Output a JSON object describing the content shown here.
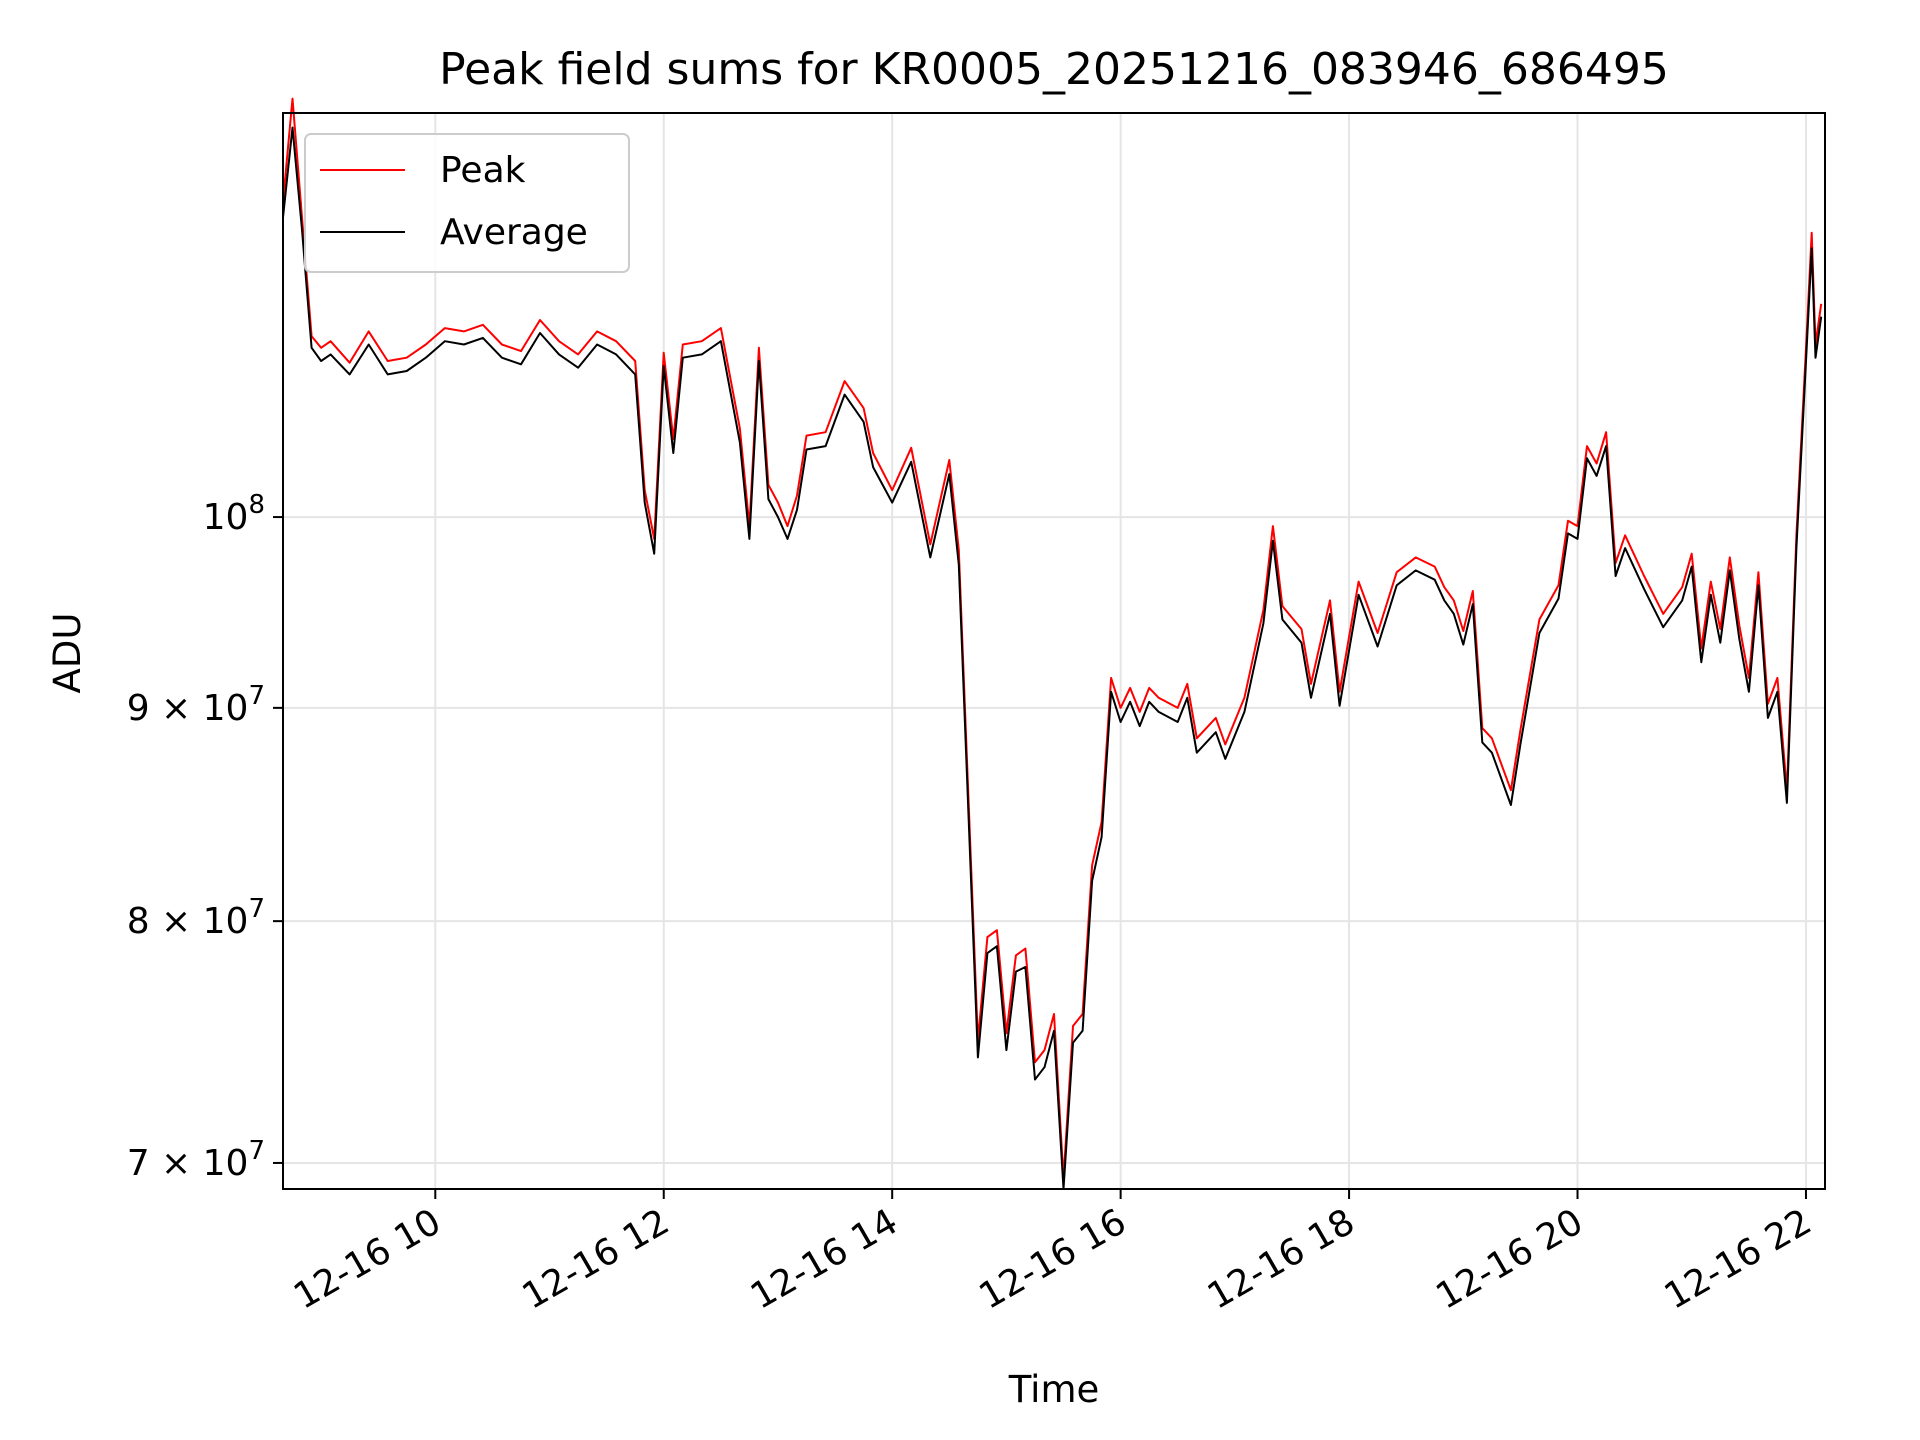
{
  "chart_data": {
    "type": "line",
    "title": "Peak field sums for KR0005_20251216_083946_686495",
    "xlabel": "Time",
    "ylabel": "ADU",
    "yscale": "log",
    "xlim": [
      "2025-12-16 08:40",
      "2025-12-16 22:10"
    ],
    "ylim": [
      69000000,
      125000000
    ],
    "grid": true,
    "legend_position": "top-left",
    "x_ticks": [
      {
        "x": "2025-12-16 10:00",
        "label": "12-16 10"
      },
      {
        "x": "2025-12-16 12:00",
        "label": "12-16 12"
      },
      {
        "x": "2025-12-16 14:00",
        "label": "12-16 14"
      },
      {
        "x": "2025-12-16 16:00",
        "label": "12-16 16"
      },
      {
        "x": "2025-12-16 18:00",
        "label": "12-16 18"
      },
      {
        "x": "2025-12-16 20:00",
        "label": "12-16 20"
      },
      {
        "x": "2025-12-16 22:00",
        "label": "12-16 22"
      }
    ],
    "y_ticks": [
      {
        "y": 70000000,
        "base": "7 × 10",
        "exp": "7"
      },
      {
        "y": 80000000,
        "base": "8 × 10",
        "exp": "7"
      },
      {
        "y": 90000000,
        "base": "9 × 10",
        "exp": "7"
      },
      {
        "y": 100000000,
        "base": "10",
        "exp": "8"
      }
    ],
    "series": [
      {
        "name": "Peak",
        "color": "#ff0000"
      },
      {
        "name": "Average",
        "color": "#000000"
      }
    ],
    "x": [
      "2025-12-16 08:40",
      "2025-12-16 08:45",
      "2025-12-16 08:50",
      "2025-12-16 08:55",
      "2025-12-16 09:00",
      "2025-12-16 09:05",
      "2025-12-16 09:15",
      "2025-12-16 09:25",
      "2025-12-16 09:35",
      "2025-12-16 09:45",
      "2025-12-16 09:55",
      "2025-12-16 10:05",
      "2025-12-16 10:15",
      "2025-12-16 10:25",
      "2025-12-16 10:35",
      "2025-12-16 10:45",
      "2025-12-16 10:55",
      "2025-12-16 11:05",
      "2025-12-16 11:15",
      "2025-12-16 11:25",
      "2025-12-16 11:35",
      "2025-12-16 11:45",
      "2025-12-16 11:50",
      "2025-12-16 11:55",
      "2025-12-16 12:00",
      "2025-12-16 12:05",
      "2025-12-16 12:10",
      "2025-12-16 12:20",
      "2025-12-16 12:30",
      "2025-12-16 12:40",
      "2025-12-16 12:45",
      "2025-12-16 12:50",
      "2025-12-16 12:55",
      "2025-12-16 13:00",
      "2025-12-16 13:05",
      "2025-12-16 13:10",
      "2025-12-16 13:15",
      "2025-12-16 13:25",
      "2025-12-16 13:35",
      "2025-12-16 13:45",
      "2025-12-16 13:50",
      "2025-12-16 14:00",
      "2025-12-16 14:10",
      "2025-12-16 14:20",
      "2025-12-16 14:30",
      "2025-12-16 14:35",
      "2025-12-16 14:45",
      "2025-12-16 14:50",
      "2025-12-16 14:55",
      "2025-12-16 15:00",
      "2025-12-16 15:05",
      "2025-12-16 15:10",
      "2025-12-16 15:15",
      "2025-12-16 15:20",
      "2025-12-16 15:25",
      "2025-12-16 15:30",
      "2025-12-16 15:35",
      "2025-12-16 15:40",
      "2025-12-16 15:45",
      "2025-12-16 15:50",
      "2025-12-16 15:55",
      "2025-12-16 16:00",
      "2025-12-16 16:05",
      "2025-12-16 16:10",
      "2025-12-16 16:15",
      "2025-12-16 16:20",
      "2025-12-16 16:30",
      "2025-12-16 16:35",
      "2025-12-16 16:40",
      "2025-12-16 16:50",
      "2025-12-16 16:55",
      "2025-12-16 17:05",
      "2025-12-16 17:15",
      "2025-12-16 17:20",
      "2025-12-16 17:25",
      "2025-12-16 17:35",
      "2025-12-16 17:40",
      "2025-12-16 17:50",
      "2025-12-16 17:55",
      "2025-12-16 18:05",
      "2025-12-16 18:15",
      "2025-12-16 18:25",
      "2025-12-16 18:35",
      "2025-12-16 18:45",
      "2025-12-16 18:50",
      "2025-12-16 18:55",
      "2025-12-16 19:00",
      "2025-12-16 19:05",
      "2025-12-16 19:10",
      "2025-12-16 19:15",
      "2025-12-16 19:25",
      "2025-12-16 19:30",
      "2025-12-16 19:40",
      "2025-12-16 19:50",
      "2025-12-16 19:55",
      "2025-12-16 20:00",
      "2025-12-16 20:05",
      "2025-12-16 20:10",
      "2025-12-16 20:15",
      "2025-12-16 20:20",
      "2025-12-16 20:25",
      "2025-12-16 20:35",
      "2025-12-16 20:45",
      "2025-12-16 20:55",
      "2025-12-16 21:00",
      "2025-12-16 21:05",
      "2025-12-16 21:10",
      "2025-12-16 21:15",
      "2025-12-16 21:20",
      "2025-12-16 21:25",
      "2025-12-16 21:30",
      "2025-12-16 21:35",
      "2025-12-16 21:40",
      "2025-12-16 21:45",
      "2025-12-16 21:50",
      "2025-12-16 21:55",
      "2025-12-16 22:00",
      "2025-12-16 22:03",
      "2025-12-16 22:05",
      "2025-12-16 22:08"
    ],
    "values_peak": [
      119000000,
      126000000,
      118000000,
      110500000,
      109800000,
      110200000,
      108900000,
      110800000,
      109000000,
      109200000,
      110000000,
      111000000,
      110800000,
      111200000,
      110000000,
      109600000,
      111500000,
      110200000,
      109400000,
      110800000,
      110200000,
      109000000,
      101500000,
      98800000,
      109500000,
      104400000,
      110000000,
      110200000,
      111000000,
      105000000,
      99500000,
      109800000,
      101800000,
      100800000,
      99500000,
      101200000,
      104600000,
      104800000,
      107800000,
      106200000,
      103600000,
      101500000,
      103900000,
      98500000,
      103200000,
      98200000,
      74900000,
      79300000,
      79600000,
      75200000,
      78500000,
      78800000,
      74000000,
      74500000,
      76000000,
      69400000,
      75500000,
      76000000,
      82500000,
      84500000,
      91500000,
      90000000,
      91000000,
      89800000,
      91000000,
      90500000,
      90000000,
      91200000,
      88500000,
      89500000,
      88200000,
      90500000,
      95000000,
      99500000,
      95200000,
      94000000,
      91200000,
      95500000,
      90800000,
      96500000,
      93800000,
      97000000,
      97800000,
      97300000,
      96200000,
      95500000,
      93900000,
      96000000,
      89000000,
      88500000,
      86000000,
      88900000,
      94500000,
      96300000,
      99800000,
      99500000,
      104000000,
      103000000,
      104800000,
      97500000,
      99000000,
      96800000,
      94800000,
      96200000,
      98000000,
      93000000,
      96500000,
      94000000,
      97800000,
      94200000,
      91500000,
      97000000,
      90200000,
      91500000,
      86000000,
      99000000,
      109800000,
      117000000,
      110000000,
      112500000
    ],
    "values_average": [
      118000000,
      124000000,
      117200000,
      109800000,
      109000000,
      109400000,
      108200000,
      110000000,
      108200000,
      108400000,
      109200000,
      110200000,
      110000000,
      110400000,
      109200000,
      108800000,
      110700000,
      109400000,
      108600000,
      110000000,
      109400000,
      108200000,
      100800000,
      98000000,
      108700000,
      103600000,
      109200000,
      109400000,
      110200000,
      104200000,
      98800000,
      109000000,
      101000000,
      100000000,
      98800000,
      100400000,
      103800000,
      104000000,
      107000000,
      105400000,
      102800000,
      100800000,
      103100000,
      97800000,
      102400000,
      97400000,
      74200000,
      78600000,
      78900000,
      74500000,
      77800000,
      78000000,
      73300000,
      73800000,
      75300000,
      69000000,
      74800000,
      75300000,
      81800000,
      83800000,
      90800000,
      89300000,
      90300000,
      89100000,
      90300000,
      89800000,
      89300000,
      90500000,
      87800000,
      88800000,
      87500000,
      89800000,
      94300000,
      98700000,
      94500000,
      93300000,
      90500000,
      94800000,
      90100000,
      95800000,
      93100000,
      96300000,
      97100000,
      96600000,
      95500000,
      94800000,
      93200000,
      95300000,
      88300000,
      87800000,
      85300000,
      88200000,
      93800000,
      95600000,
      99100000,
      98800000,
      103300000,
      102300000,
      104000000,
      96800000,
      98300000,
      96100000,
      94100000,
      95500000,
      97300000,
      92300000,
      95800000,
      93300000,
      97100000,
      93500000,
      90800000,
      96300000,
      89500000,
      90800000,
      85400000,
      98300000,
      109000000,
      116000000,
      109200000,
      111700000
    ]
  }
}
